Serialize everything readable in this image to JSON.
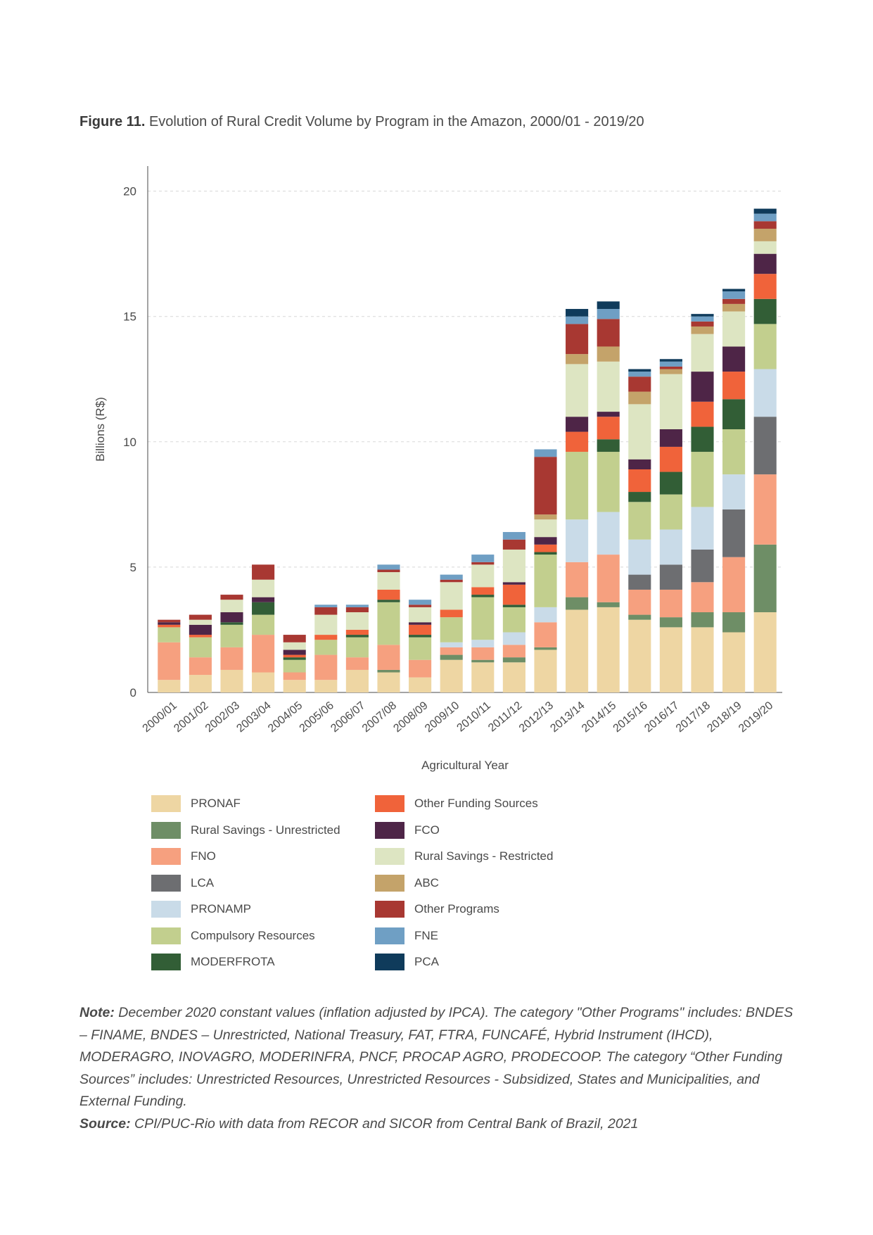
{
  "figure": {
    "label": "Figure 11.",
    "title": "Evolution of Rural Credit Volume by Program in the Amazon, 2000/01 - 2019/20"
  },
  "chart_data": {
    "type": "bar",
    "stacked": true,
    "xlabel": "Agricultural Year",
    "ylabel": "Billions (R$)",
    "ylim": [
      0,
      21
    ],
    "yticks": [
      0,
      5,
      10,
      15,
      20
    ],
    "grid": "horizontal dashed",
    "legend_position": "bottom",
    "categories": [
      "2000/01",
      "2001/02",
      "2002/03",
      "2003/04",
      "2004/05",
      "2005/06",
      "2006/07",
      "2007/08",
      "2008/09",
      "2009/10",
      "2010/11",
      "2011/12",
      "2012/13",
      "2013/14",
      "2014/15",
      "2015/16",
      "2016/17",
      "2017/18",
      "2018/19",
      "2019/20"
    ],
    "series": [
      {
        "name": "PRONAF",
        "color": "#eed6a3",
        "values": [
          0.5,
          0.7,
          0.9,
          0.8,
          0.5,
          0.5,
          0.9,
          0.8,
          0.6,
          1.3,
          1.2,
          1.2,
          1.7,
          3.3,
          3.4,
          2.9,
          2.6,
          2.6,
          2.4,
          3.2
        ]
      },
      {
        "name": "Rural Savings - Unrestricted",
        "color": "#6e8e66",
        "values": [
          0,
          0,
          0,
          0,
          0,
          0,
          0,
          0.1,
          0,
          0.2,
          0.1,
          0.2,
          0.1,
          0.5,
          0.2,
          0.2,
          0.4,
          0.6,
          0.8,
          2.7
        ]
      },
      {
        "name": "FNO",
        "color": "#f6a07f",
        "values": [
          1.5,
          0.7,
          0.9,
          1.5,
          0.3,
          1.0,
          0.5,
          1.0,
          0.7,
          0.3,
          0.5,
          0.5,
          1.0,
          1.4,
          1.9,
          1.0,
          1.1,
          1.2,
          2.2,
          2.8
        ]
      },
      {
        "name": "LCA",
        "color": "#6d6e71",
        "values": [
          0,
          0,
          0,
          0,
          0,
          0,
          0,
          0,
          0,
          0,
          0,
          0,
          0,
          0,
          0,
          0.6,
          1.0,
          1.3,
          1.9,
          2.3
        ]
      },
      {
        "name": "PRONAMP",
        "color": "#c9dbe8",
        "values": [
          0,
          0,
          0,
          0,
          0,
          0,
          0,
          0,
          0,
          0.2,
          0.3,
          0.5,
          0.6,
          1.7,
          1.7,
          1.4,
          1.4,
          1.7,
          1.4,
          1.9
        ]
      },
      {
        "name": "Compulsory Resources",
        "color": "#c2cf8e",
        "values": [
          0.6,
          0.8,
          0.9,
          0.8,
          0.5,
          0.6,
          0.8,
          1.7,
          0.9,
          1.0,
          1.7,
          1.0,
          2.1,
          2.7,
          2.4,
          1.5,
          1.4,
          2.2,
          1.8,
          1.8
        ]
      },
      {
        "name": "MODERFROTA",
        "color": "#325e36",
        "values": [
          0,
          0,
          0.1,
          0.5,
          0.1,
          0,
          0.1,
          0.1,
          0.1,
          0,
          0.1,
          0.1,
          0.1,
          0,
          0.5,
          0.4,
          0.9,
          1.0,
          1.2,
          1.0
        ]
      },
      {
        "name": "Other Funding Sources",
        "color": "#f0633a",
        "values": [
          0.1,
          0.1,
          0,
          0,
          0.1,
          0.2,
          0.2,
          0.4,
          0.4,
          0.3,
          0.3,
          0.8,
          0.3,
          0.8,
          0.9,
          0.9,
          1.0,
          1.0,
          1.1,
          1.0
        ]
      },
      {
        "name": "FCO",
        "color": "#4e2547",
        "values": [
          0.1,
          0.4,
          0.4,
          0.2,
          0.2,
          0,
          0,
          0,
          0.1,
          0,
          0,
          0.1,
          0.3,
          0.6,
          0.2,
          0.4,
          0.7,
          1.2,
          1.0,
          0.8
        ]
      },
      {
        "name": "Rural Savings - Restricted",
        "color": "#dde5c2",
        "values": [
          0,
          0.2,
          0.5,
          0.7,
          0.3,
          0.8,
          0.7,
          0.7,
          0.6,
          1.1,
          0.9,
          1.3,
          0.7,
          2.1,
          2.0,
          2.2,
          2.2,
          1.5,
          1.4,
          0.5
        ]
      },
      {
        "name": "ABC",
        "color": "#c4a36a",
        "values": [
          0,
          0,
          0,
          0,
          0,
          0,
          0,
          0,
          0,
          0,
          0,
          0,
          0.2,
          0.4,
          0.6,
          0.5,
          0.2,
          0.3,
          0.3,
          0.5
        ]
      },
      {
        "name": "Other Programs",
        "color": "#a83832",
        "values": [
          0.1,
          0.2,
          0.2,
          0.6,
          0.3,
          0.3,
          0.2,
          0.1,
          0.1,
          0.1,
          0.1,
          0.4,
          2.3,
          1.2,
          1.1,
          0.6,
          0.1,
          0.2,
          0.2,
          0.3
        ]
      },
      {
        "name": "FNE",
        "color": "#6f9fc4",
        "values": [
          0,
          0,
          0,
          0,
          0,
          0.1,
          0.1,
          0.2,
          0.2,
          0.2,
          0.3,
          0.3,
          0.3,
          0.3,
          0.4,
          0.2,
          0.2,
          0.2,
          0.3,
          0.3
        ]
      },
      {
        "name": "PCA",
        "color": "#0f3b5b",
        "values": [
          0,
          0,
          0,
          0,
          0,
          0,
          0,
          0,
          0,
          0,
          0,
          0,
          0,
          0.3,
          0.3,
          0.1,
          0.1,
          0.1,
          0.1,
          0.2
        ]
      }
    ]
  },
  "legend": {
    "items": [
      {
        "name": "PRONAF",
        "color": "#eed6a3"
      },
      {
        "name": "Rural Savings - Unrestricted",
        "color": "#6e8e66"
      },
      {
        "name": "FNO",
        "color": "#f6a07f"
      },
      {
        "name": "LCA",
        "color": "#6d6e71"
      },
      {
        "name": "PRONAMP",
        "color": "#c9dbe8"
      },
      {
        "name": "Compulsory Resources",
        "color": "#c2cf8e"
      },
      {
        "name": "MODERFROTA",
        "color": "#325e36"
      },
      {
        "name": "Other Funding Sources",
        "color": "#f0633a"
      },
      {
        "name": "FCO",
        "color": "#4e2547"
      },
      {
        "name": "Rural Savings - Restricted",
        "color": "#dde5c2"
      },
      {
        "name": "ABC",
        "color": "#c4a36a"
      },
      {
        "name": "Other Programs",
        "color": "#a83832"
      },
      {
        "name": "FNE",
        "color": "#6f9fc4"
      },
      {
        "name": "PCA",
        "color": "#0f3b5b"
      }
    ]
  },
  "note": {
    "label": "Note:",
    "text": "December 2020 constant values (inflation adjusted by IPCA). The category \"Other Programs\" includes: BNDES – FINAME, BNDES – Unrestricted, National Treasury, FAT, FTRA, FUNCAFÉ, Hybrid Instrument (IHCD), MODERAGRO, INOVAGRO, MODERINFRA, PNCF, PROCAP AGRO, PRODECOOP. The category “Other Funding Sources” includes: Unrestricted Resources, Unrestricted Resources - Subsidized, States and Municipalities, and External Funding.",
    "source_label": "Source:",
    "source_text": "CPI/PUC-Rio with data from RECOR and SICOR from Central Bank of Brazil, 2021"
  }
}
